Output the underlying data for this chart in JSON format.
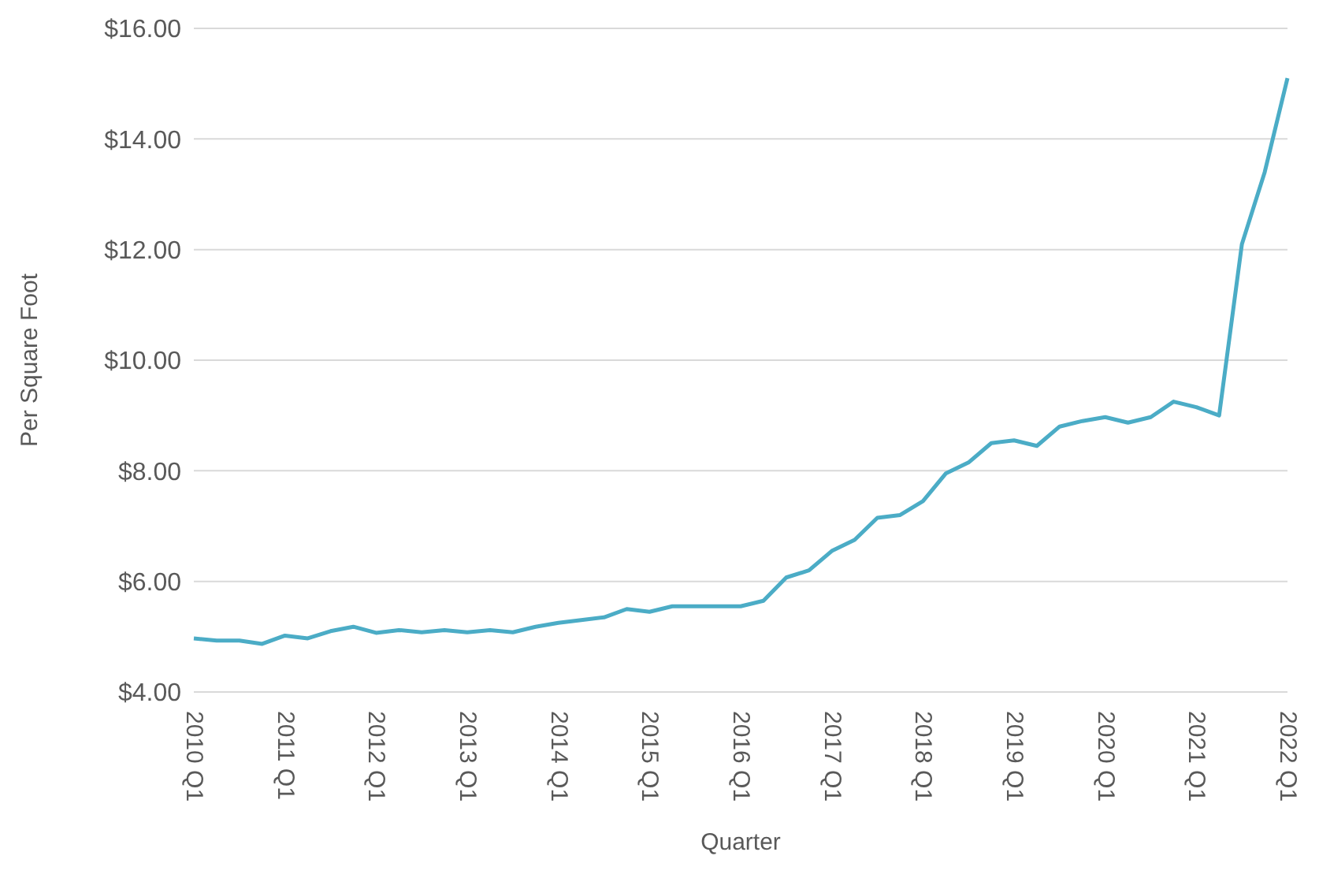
{
  "chart_data": {
    "type": "line",
    "xlabel": "Quarter",
    "ylabel": "Per Square Foot",
    "categories": [
      "2010 Q1",
      null,
      null,
      null,
      "2011 Q1",
      null,
      null,
      null,
      "2012 Q1",
      null,
      null,
      null,
      "2013 Q1",
      null,
      null,
      null,
      "2014 Q1",
      null,
      null,
      null,
      "2015 Q1",
      null,
      null,
      null,
      "2016 Q1",
      null,
      null,
      null,
      "2017 Q1",
      null,
      null,
      null,
      "2018 Q1",
      null,
      null,
      null,
      "2019 Q1",
      null,
      null,
      null,
      "2020 Q1",
      null,
      null,
      null,
      "2021 Q1",
      null,
      null,
      null,
      "2022 Q1"
    ],
    "series": [
      {
        "color": "#4bacc6",
        "values": [
          4.97,
          4.93,
          4.93,
          4.87,
          5.02,
          4.97,
          5.1,
          5.18,
          5.07,
          5.12,
          5.08,
          5.12,
          5.08,
          5.12,
          5.08,
          5.18,
          5.25,
          5.3,
          5.35,
          5.5,
          5.45,
          5.55,
          5.55,
          5.55,
          5.55,
          5.65,
          6.07,
          6.2,
          6.55,
          6.75,
          7.15,
          7.2,
          7.45,
          7.95,
          8.15,
          8.5,
          8.55,
          8.45,
          8.8,
          8.9,
          8.97,
          8.87,
          8.97,
          9.25,
          9.15,
          9.0,
          12.1,
          13.4,
          15.1
        ]
      }
    ],
    "ylim": [
      4,
      16
    ],
    "yticks": [
      {
        "value": 4,
        "label": "$4.00"
      },
      {
        "value": 6,
        "label": "$6.00"
      },
      {
        "value": 8,
        "label": "$8.00"
      },
      {
        "value": 10,
        "label": "$10.00"
      },
      {
        "value": 12,
        "label": "$12.00"
      },
      {
        "value": 14,
        "label": "$14.00"
      },
      {
        "value": 16,
        "label": "$16.00"
      }
    ],
    "grid": "y",
    "marker": "none",
    "line_style": "solid",
    "legend": false
  }
}
